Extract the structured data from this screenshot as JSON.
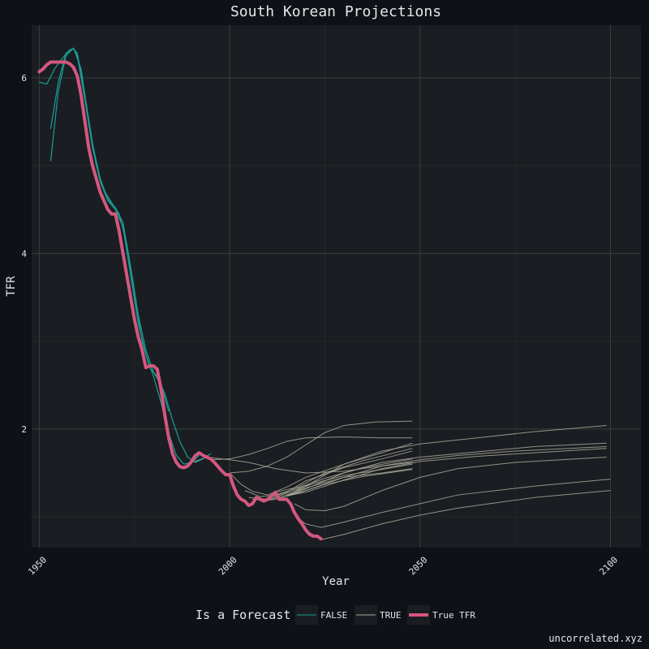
{
  "caption": "uncorrelated.xyz",
  "chart_data": {
    "type": "line",
    "title": "South Korean Projections",
    "xlabel": "Year",
    "ylabel": "TFR",
    "xlim": [
      1948,
      2108
    ],
    "ylim": [
      0.65,
      6.6
    ],
    "xticks": [
      1950,
      2000,
      2050,
      2100
    ],
    "yticks": [
      2,
      4,
      6
    ],
    "grid": true,
    "legend": {
      "title": "Is a Forecast",
      "position": "bottom",
      "entries": [
        {
          "label": "FALSE",
          "color": "#1c9c97"
        },
        {
          "label": "TRUE",
          "color": "#aaa89a"
        },
        {
          "label": "True TFR",
          "color": "#d4577f"
        }
      ]
    },
    "colors": {
      "background": "#0e1117",
      "panel": "#1a1d21",
      "grid_major": "#3b3f3c",
      "grid_minor": "#24282a",
      "text": "#e6e6e6"
    },
    "series": [
      {
        "group": "FALSE",
        "points": [
          [
            1950,
            5.95
          ],
          [
            1952,
            5.93
          ],
          [
            1954,
            6.1
          ],
          [
            1956,
            6.22
          ],
          [
            1958,
            6.32
          ],
          [
            1959,
            6.33
          ],
          [
            1960,
            6.25
          ],
          [
            1962,
            5.75
          ],
          [
            1964,
            5.2
          ],
          [
            1966,
            4.82
          ],
          [
            1968,
            4.6
          ],
          [
            1970,
            4.5
          ],
          [
            1972,
            4.3
          ],
          [
            1974,
            3.75
          ],
          [
            1976,
            3.2
          ],
          [
            1978,
            2.85
          ],
          [
            1980,
            2.6
          ],
          [
            1982,
            2.3
          ],
          [
            1984,
            1.95
          ],
          [
            1986,
            1.7
          ],
          [
            1988,
            1.6
          ],
          [
            1990,
            1.62
          ],
          [
            1992,
            1.7
          ]
        ]
      },
      {
        "group": "FALSE",
        "points": [
          [
            1953,
            5.42
          ],
          [
            1955,
            5.95
          ],
          [
            1957,
            6.28
          ],
          [
            1959,
            6.33
          ],
          [
            1960,
            6.28
          ],
          [
            1962,
            5.8
          ],
          [
            1964,
            5.25
          ],
          [
            1966,
            4.85
          ],
          [
            1968,
            4.62
          ],
          [
            1970,
            4.52
          ],
          [
            1972,
            4.35
          ],
          [
            1974,
            3.85
          ],
          [
            1976,
            3.3
          ],
          [
            1978,
            2.9
          ],
          [
            1980,
            2.65
          ],
          [
            1982,
            2.5
          ],
          [
            1984,
            2.2
          ]
        ]
      },
      {
        "group": "FALSE",
        "points": [
          [
            1953,
            5.05
          ],
          [
            1955,
            5.85
          ],
          [
            1957,
            6.25
          ],
          [
            1959,
            6.34
          ],
          [
            1961,
            6.1
          ],
          [
            1963,
            5.5
          ],
          [
            1965,
            5.0
          ],
          [
            1967,
            4.72
          ],
          [
            1969,
            4.58
          ],
          [
            1971,
            4.45
          ],
          [
            1973,
            4.1
          ],
          [
            1975,
            3.55
          ],
          [
            1977,
            3.0
          ],
          [
            1979,
            2.7
          ],
          [
            1981,
            2.6
          ],
          [
            1983,
            2.4
          ],
          [
            1985,
            2.1
          ],
          [
            1987,
            1.85
          ],
          [
            1989,
            1.68
          ],
          [
            1991,
            1.62
          ],
          [
            1993,
            1.66
          ],
          [
            1995,
            1.72
          ]
        ]
      },
      {
        "group": "TRUE",
        "points": [
          [
            1990,
            1.62
          ],
          [
            1994,
            1.68
          ],
          [
            2000,
            1.65
          ],
          [
            2005,
            1.62
          ],
          [
            2012,
            1.55
          ],
          [
            2020,
            1.5
          ],
          [
            2030,
            1.52
          ],
          [
            2040,
            1.58
          ],
          [
            2048,
            1.62
          ]
        ]
      },
      {
        "group": "TRUE",
        "points": [
          [
            1995,
            1.65
          ],
          [
            2000,
            1.66
          ],
          [
            2005,
            1.71
          ],
          [
            2010,
            1.78
          ],
          [
            2015,
            1.86
          ],
          [
            2020,
            1.9
          ],
          [
            2030,
            1.91
          ],
          [
            2040,
            1.9
          ],
          [
            2048,
            1.9
          ]
        ]
      },
      {
        "group": "TRUE",
        "points": [
          [
            2000,
            1.5
          ],
          [
            2005,
            1.52
          ],
          [
            2010,
            1.58
          ],
          [
            2015,
            1.68
          ],
          [
            2020,
            1.82
          ],
          [
            2025,
            1.96
          ],
          [
            2030,
            2.04
          ],
          [
            2038,
            2.08
          ],
          [
            2048,
            2.09
          ]
        ]
      },
      {
        "group": "TRUE",
        "points": [
          [
            2000,
            1.5
          ],
          [
            2003,
            1.37
          ],
          [
            2006,
            1.29
          ],
          [
            2010,
            1.25
          ],
          [
            2015,
            1.34
          ],
          [
            2020,
            1.45
          ],
          [
            2030,
            1.6
          ],
          [
            2040,
            1.73
          ],
          [
            2048,
            1.84
          ]
        ]
      },
      {
        "group": "TRUE",
        "points": [
          [
            2004,
            1.3
          ],
          [
            2008,
            1.23
          ],
          [
            2012,
            1.25
          ],
          [
            2018,
            1.33
          ],
          [
            2025,
            1.44
          ],
          [
            2035,
            1.56
          ],
          [
            2048,
            1.66
          ]
        ]
      },
      {
        "group": "TRUE",
        "points": [
          [
            2005,
            1.22
          ],
          [
            2010,
            1.2
          ],
          [
            2015,
            1.27
          ],
          [
            2022,
            1.38
          ],
          [
            2030,
            1.47
          ],
          [
            2040,
            1.54
          ],
          [
            2048,
            1.6
          ]
        ]
      },
      {
        "group": "TRUE",
        "points": [
          [
            2006,
            1.2
          ],
          [
            2010,
            1.19
          ],
          [
            2015,
            1.25
          ],
          [
            2020,
            1.33
          ],
          [
            2030,
            1.45
          ],
          [
            2040,
            1.5
          ],
          [
            2048,
            1.55
          ]
        ]
      },
      {
        "group": "TRUE",
        "points": [
          [
            2008,
            1.18
          ],
          [
            2012,
            1.2
          ],
          [
            2018,
            1.27
          ],
          [
            2025,
            1.37
          ],
          [
            2035,
            1.46
          ],
          [
            2048,
            1.54
          ]
        ]
      },
      {
        "group": "TRUE",
        "points": [
          [
            2010,
            1.22
          ],
          [
            2015,
            1.28
          ],
          [
            2020,
            1.41
          ],
          [
            2030,
            1.56
          ],
          [
            2040,
            1.66
          ],
          [
            2048,
            1.75
          ]
        ]
      },
      {
        "group": "TRUE",
        "points": [
          [
            2012,
            1.28
          ],
          [
            2018,
            1.34
          ],
          [
            2025,
            1.5
          ],
          [
            2035,
            1.64
          ],
          [
            2048,
            1.78
          ]
        ]
      },
      {
        "group": "TRUE",
        "points": [
          [
            2015,
            1.24
          ],
          [
            2020,
            1.3
          ],
          [
            2030,
            1.45
          ],
          [
            2040,
            1.58
          ],
          [
            2050,
            1.65
          ],
          [
            2060,
            1.7
          ],
          [
            2075,
            1.75
          ],
          [
            2099,
            1.8
          ]
        ]
      },
      {
        "group": "TRUE",
        "points": [
          [
            2015,
            1.24
          ],
          [
            2020,
            1.32
          ],
          [
            2030,
            1.5
          ],
          [
            2040,
            1.62
          ],
          [
            2050,
            1.68
          ],
          [
            2065,
            1.74
          ],
          [
            2080,
            1.8
          ],
          [
            2099,
            1.84
          ]
        ]
      },
      {
        "group": "TRUE",
        "points": [
          [
            2015,
            1.24
          ],
          [
            2020,
            1.35
          ],
          [
            2030,
            1.6
          ],
          [
            2040,
            1.75
          ],
          [
            2050,
            1.83
          ],
          [
            2065,
            1.9
          ],
          [
            2080,
            1.97
          ],
          [
            2099,
            2.04
          ]
        ]
      },
      {
        "group": "TRUE",
        "points": [
          [
            2015,
            1.24
          ],
          [
            2020,
            1.28
          ],
          [
            2030,
            1.42
          ],
          [
            2040,
            1.55
          ],
          [
            2050,
            1.63
          ],
          [
            2065,
            1.69
          ],
          [
            2080,
            1.73
          ],
          [
            2099,
            1.78
          ]
        ]
      },
      {
        "group": "TRUE",
        "points": [
          [
            2017,
            1.15
          ],
          [
            2020,
            1.08
          ],
          [
            2025,
            1.07
          ],
          [
            2030,
            1.12
          ],
          [
            2040,
            1.3
          ],
          [
            2050,
            1.45
          ],
          [
            2060,
            1.55
          ],
          [
            2075,
            1.62
          ],
          [
            2099,
            1.68
          ]
        ]
      },
      {
        "group": "TRUE",
        "points": [
          [
            2018,
            0.98
          ],
          [
            2020,
            0.92
          ],
          [
            2024,
            0.88
          ],
          [
            2030,
            0.94
          ],
          [
            2040,
            1.05
          ],
          [
            2050,
            1.15
          ],
          [
            2060,
            1.25
          ],
          [
            2080,
            1.35
          ],
          [
            2100,
            1.43
          ]
        ]
      },
      {
        "group": "TRUE",
        "points": [
          [
            2021,
            0.82
          ],
          [
            2024,
            0.74
          ],
          [
            2030,
            0.8
          ],
          [
            2040,
            0.92
          ],
          [
            2050,
            1.02
          ],
          [
            2060,
            1.1
          ],
          [
            2080,
            1.22
          ],
          [
            2100,
            1.3
          ]
        ]
      }
    ],
    "true_tfr": [
      [
        1950,
        6.07
      ],
      [
        1951,
        6.1
      ],
      [
        1952,
        6.15
      ],
      [
        1953,
        6.18
      ],
      [
        1954,
        6.18
      ],
      [
        1955,
        6.18
      ],
      [
        1956,
        6.18
      ],
      [
        1957,
        6.18
      ],
      [
        1958,
        6.16
      ],
      [
        1959,
        6.12
      ],
      [
        1960,
        6.02
      ],
      [
        1961,
        5.8
      ],
      [
        1962,
        5.5
      ],
      [
        1963,
        5.2
      ],
      [
        1964,
        5.0
      ],
      [
        1965,
        4.85
      ],
      [
        1966,
        4.7
      ],
      [
        1967,
        4.6
      ],
      [
        1968,
        4.5
      ],
      [
        1969,
        4.45
      ],
      [
        1970,
        4.45
      ],
      [
        1971,
        4.25
      ],
      [
        1972,
        4.0
      ],
      [
        1973,
        3.75
      ],
      [
        1974,
        3.5
      ],
      [
        1975,
        3.25
      ],
      [
        1976,
        3.05
      ],
      [
        1977,
        2.9
      ],
      [
        1978,
        2.7
      ],
      [
        1979,
        2.72
      ],
      [
        1980,
        2.72
      ],
      [
        1981,
        2.68
      ],
      [
        1982,
        2.45
      ],
      [
        1983,
        2.15
      ],
      [
        1984,
        1.9
      ],
      [
        1985,
        1.72
      ],
      [
        1986,
        1.62
      ],
      [
        1987,
        1.57
      ],
      [
        1988,
        1.56
      ],
      [
        1989,
        1.58
      ],
      [
        1990,
        1.63
      ],
      [
        1991,
        1.7
      ],
      [
        1992,
        1.73
      ],
      [
        1993,
        1.7
      ],
      [
        1994,
        1.68
      ],
      [
        1995,
        1.66
      ],
      [
        1996,
        1.62
      ],
      [
        1997,
        1.57
      ],
      [
        1998,
        1.52
      ],
      [
        1999,
        1.48
      ],
      [
        2000,
        1.48
      ],
      [
        2001,
        1.35
      ],
      [
        2002,
        1.25
      ],
      [
        2003,
        1.2
      ],
      [
        2004,
        1.18
      ],
      [
        2005,
        1.13
      ],
      [
        2006,
        1.15
      ],
      [
        2007,
        1.22
      ],
      [
        2008,
        1.2
      ],
      [
        2009,
        1.18
      ],
      [
        2010,
        1.2
      ],
      [
        2011,
        1.24
      ],
      [
        2012,
        1.28
      ],
      [
        2013,
        1.2
      ],
      [
        2014,
        1.2
      ],
      [
        2015,
        1.2
      ],
      [
        2016,
        1.15
      ],
      [
        2017,
        1.05
      ],
      [
        2018,
        0.98
      ],
      [
        2019,
        0.92
      ],
      [
        2020,
        0.85
      ],
      [
        2021,
        0.8
      ],
      [
        2022,
        0.78
      ],
      [
        2023,
        0.78
      ],
      [
        2024,
        0.75
      ]
    ]
  }
}
